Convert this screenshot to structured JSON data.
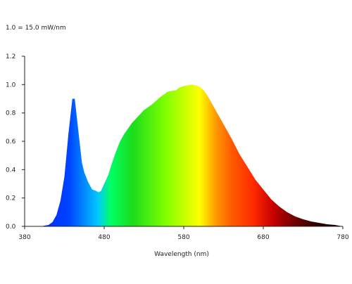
{
  "chart_data": {
    "type": "area",
    "annotation": "1.0 = 15.0 mW/nm",
    "xlabel": "Wavelength (nm)",
    "ylabel": "",
    "xlim": [
      380,
      780
    ],
    "ylim": [
      0,
      1.2
    ],
    "x_ticks": [
      "380",
      "480",
      "580",
      "680",
      "780"
    ],
    "y_ticks": [
      "0.0",
      "0.2",
      "0.4",
      "0.6",
      "0.8",
      "1.0",
      "1.2"
    ],
    "grid": false,
    "legend": "none",
    "fill": "visible-spectrum gradient",
    "series": [
      {
        "x": [
          380,
          400,
          410,
          415,
          420,
          425,
          430,
          435,
          440,
          443,
          446,
          449,
          452,
          455,
          460,
          465,
          470,
          473,
          476,
          480,
          485,
          490,
          495,
          500,
          505,
          510,
          515,
          520,
          525,
          530,
          540,
          550,
          560,
          570,
          575,
          580,
          585,
          590,
          595,
          600,
          605,
          610,
          615,
          620,
          630,
          640,
          650,
          660,
          670,
          680,
          690,
          700,
          710,
          720,
          730,
          740,
          750,
          760,
          770,
          780
        ],
        "values": [
          0.0,
          0.0,
          0.01,
          0.03,
          0.08,
          0.18,
          0.35,
          0.65,
          0.9,
          0.9,
          0.75,
          0.6,
          0.45,
          0.38,
          0.31,
          0.26,
          0.25,
          0.24,
          0.25,
          0.3,
          0.36,
          0.45,
          0.53,
          0.6,
          0.65,
          0.69,
          0.73,
          0.76,
          0.79,
          0.82,
          0.86,
          0.91,
          0.95,
          0.96,
          0.98,
          0.99,
          0.995,
          1.0,
          0.995,
          0.985,
          0.96,
          0.92,
          0.87,
          0.82,
          0.72,
          0.62,
          0.51,
          0.42,
          0.33,
          0.26,
          0.19,
          0.14,
          0.1,
          0.07,
          0.05,
          0.035,
          0.025,
          0.015,
          0.01,
          0.0
        ]
      }
    ],
    "colors": {
      "axis": "#222222",
      "spectrum_stops": [
        "#0019ff",
        "#0044ff",
        "#00c8ff",
        "#00ff64",
        "#1bdc1b",
        "#7dff00",
        "#ffff00",
        "#ff9b00",
        "#ff5a00",
        "#ff2a00",
        "#c80000",
        "#7a0000",
        "#2a0000",
        "#000000"
      ]
    }
  }
}
